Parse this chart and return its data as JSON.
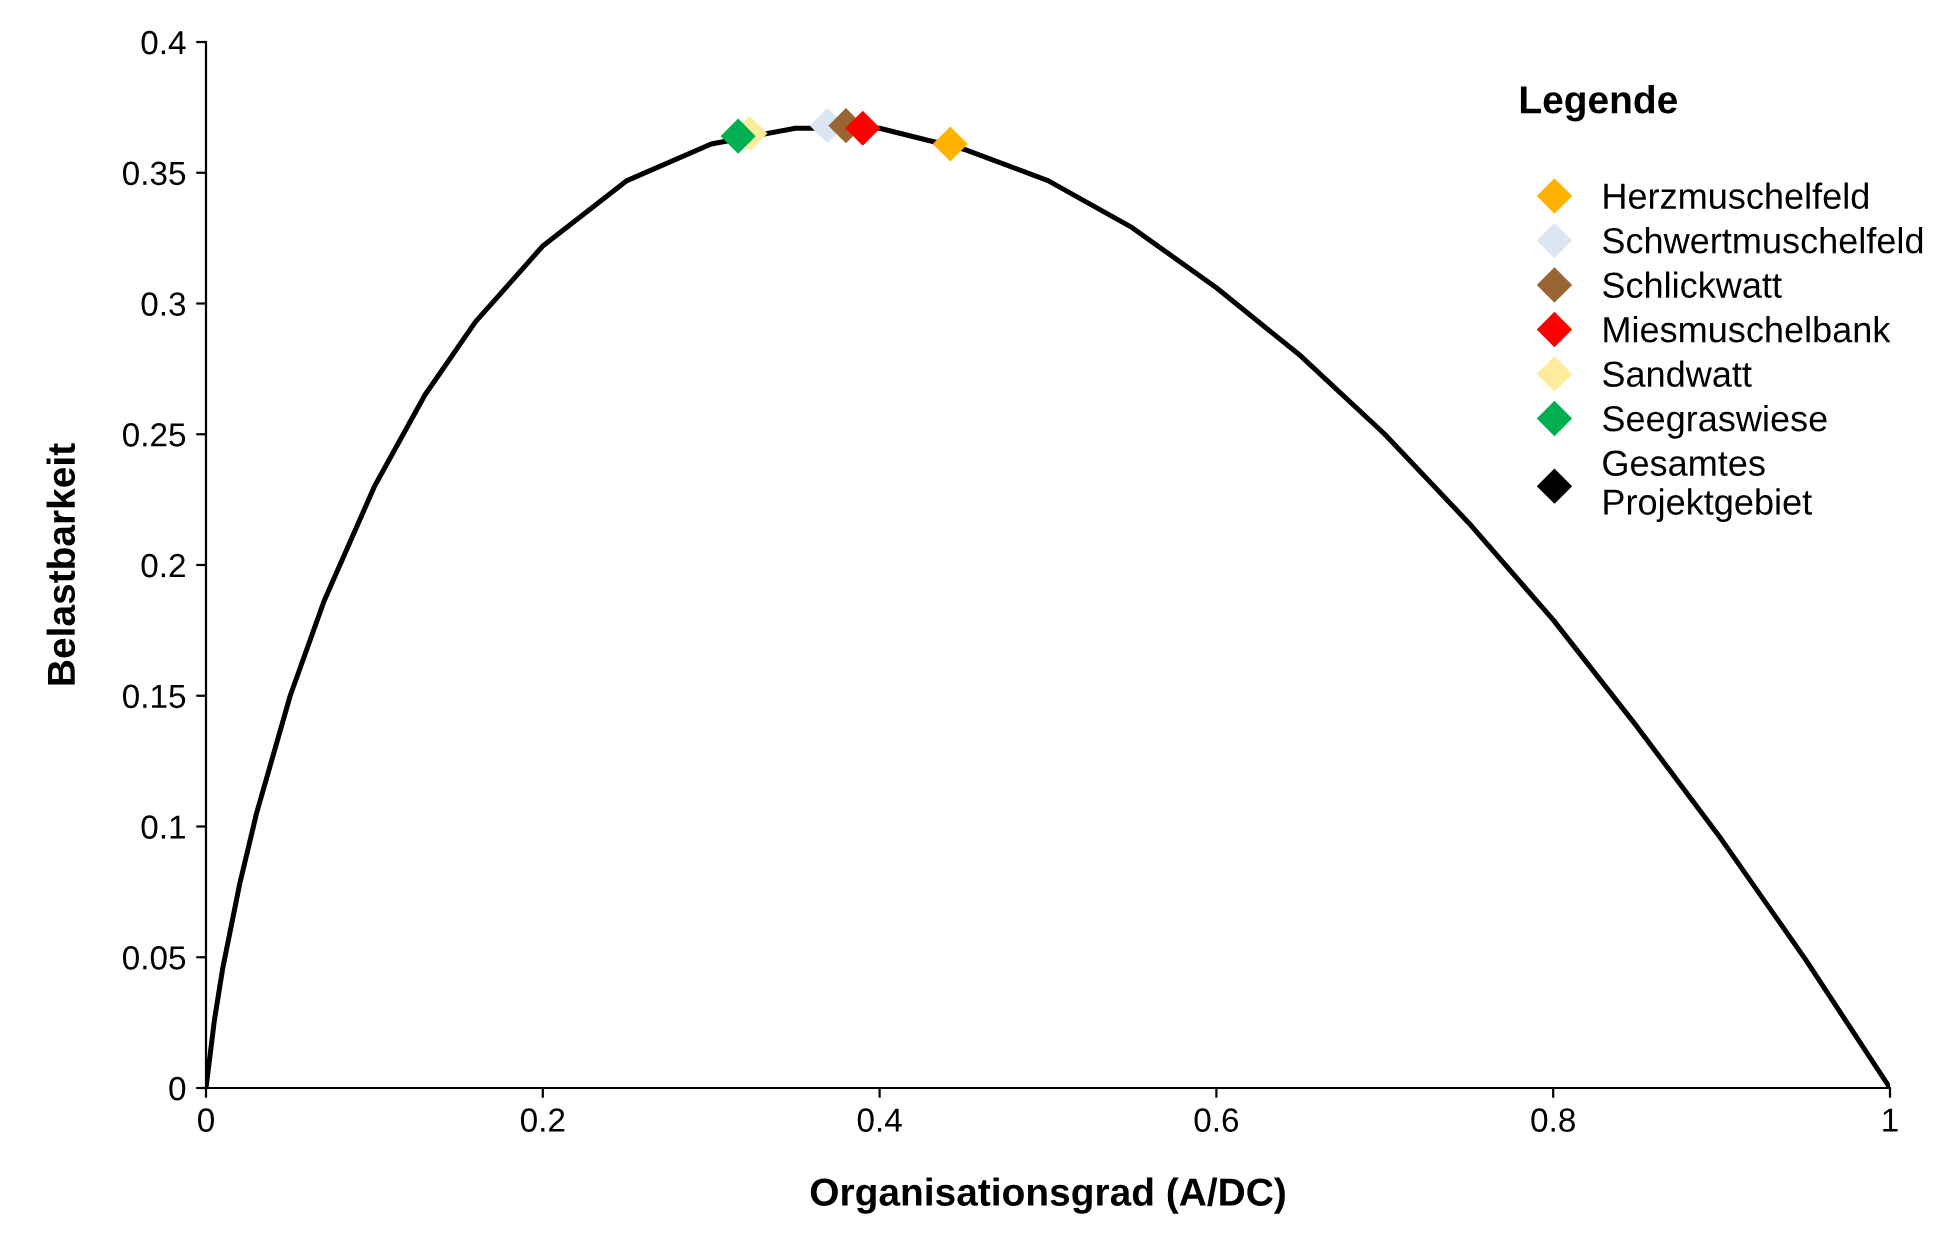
{
  "chart_data": {
    "type": "scatter",
    "xlabel": "Organisationsgrad (A/DC)",
    "ylabel": "Belastbarkeit",
    "legend_title": "Legende",
    "legend": "right",
    "marker": "diamond",
    "grid": false,
    "xlim": [
      0,
      1
    ],
    "xticks": [
      0,
      0.2,
      0.4,
      0.6,
      0.8,
      1
    ],
    "ylim": [
      0,
      0.4
    ],
    "yticks": [
      0,
      0.05,
      0.1,
      0.15,
      0.2,
      0.25,
      0.3,
      0.35,
      0.4
    ],
    "series": [
      {
        "type": "line",
        "marker": "none",
        "color": "#000000",
        "x": [
          0,
          0.005,
          0.01,
          0.02,
          0.03,
          0.05,
          0.07,
          0.1,
          0.13,
          0.16,
          0.2,
          0.25,
          0.3,
          0.35,
          0.4,
          0.45,
          0.5,
          0.55,
          0.6,
          0.65,
          0.7,
          0.75,
          0.8,
          0.85,
          0.9,
          0.95,
          1
        ],
        "values": [
          0,
          0.026,
          0.046,
          0.078,
          0.105,
          0.15,
          0.186,
          0.23,
          0.265,
          0.293,
          0.322,
          0.347,
          0.361,
          0.367,
          0.367,
          0.359,
          0.347,
          0.329,
          0.306,
          0.28,
          0.25,
          0.216,
          0.179,
          0.138,
          0.095,
          0.049,
          0
        ]
      },
      {
        "name": "Herzmuschelfeld",
        "color": "#ffb300",
        "x": [
          0.442
        ],
        "values": [
          0.361
        ]
      },
      {
        "name": "Schwertmuschelfeld",
        "color": "#dce6f2",
        "x": [
          0.369
        ],
        "values": [
          0.368
        ]
      },
      {
        "name": "Schlickwatt",
        "color": "#996633",
        "x": [
          0.38
        ],
        "values": [
          0.368
        ]
      },
      {
        "name": "Miesmuschelbank",
        "color": "#ff0000",
        "x": [
          0.39
        ],
        "values": [
          0.367
        ]
      },
      {
        "name": "Sandwatt",
        "color": "#ffeb9c",
        "x": [
          0.323
        ],
        "values": [
          0.365
        ]
      },
      {
        "name": "Seegraswiese",
        "color": "#00b050",
        "x": [
          0.316
        ],
        "values": [
          0.364
        ]
      },
      {
        "name": "Gesamtes\nProjektgebiet",
        "color": "#000000",
        "x": [
          null
        ],
        "values": [
          null
        ]
      }
    ]
  }
}
